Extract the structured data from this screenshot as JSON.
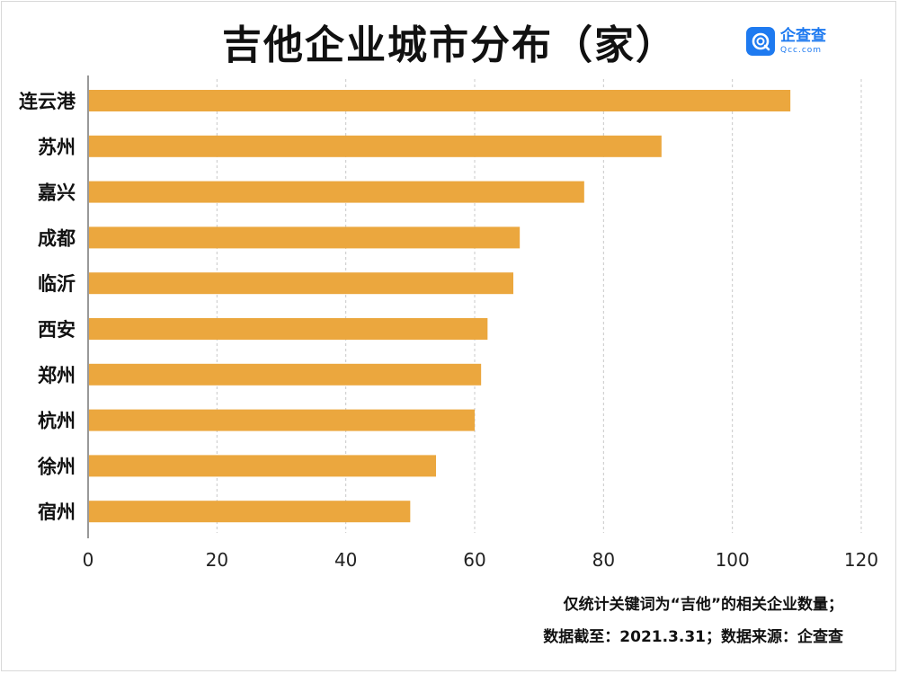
{
  "title": "吉他企业城市分布（家）",
  "brand": {
    "name": "企查查",
    "sub": "Qcc.com",
    "icon": "qcc-logo-icon",
    "color": "#1e7af0"
  },
  "chart_data": {
    "type": "bar",
    "orientation": "horizontal",
    "title": "吉他企业城市分布（家）",
    "categories": [
      "连云港",
      "苏州",
      "嘉兴",
      "成都",
      "临沂",
      "西安",
      "郑州",
      "杭州",
      "徐州",
      "宿州"
    ],
    "values": [
      109,
      89,
      77,
      67,
      66,
      62,
      61,
      60,
      54,
      50
    ],
    "xlim": [
      0,
      120
    ],
    "xticks": [
      0,
      20,
      40,
      60,
      80,
      100,
      120
    ],
    "grid": "vertical-dashed",
    "bar_color": "#eba73e"
  },
  "footnotes": {
    "line1": "仅统计关键词为“吉他”的相关企业数量；",
    "line2": "数据截至：2021.3.31；数据来源：企查查"
  }
}
